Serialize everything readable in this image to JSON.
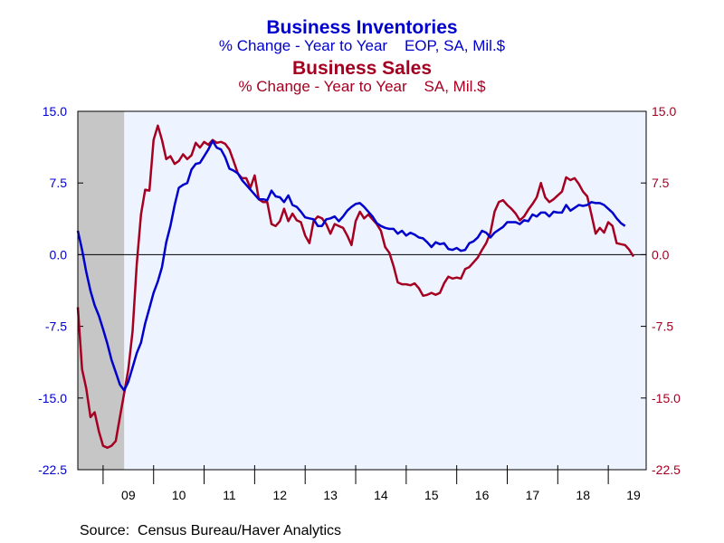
{
  "titles": {
    "inventories_title": "Business Inventories",
    "inventories_subtitle": "% Change - Year to Year    EOP, SA, Mil.$",
    "sales_title": "Business Sales",
    "sales_subtitle": "% Change - Year to Year    SA, Mil.$"
  },
  "colors": {
    "inventories": "#0000cc",
    "sales": "#a50021",
    "plot_bg": "#eef4ff",
    "recession": "#c6c6c6"
  },
  "source": "Source:  Census Bureau/Haver Analytics",
  "chart_data": {
    "type": "line",
    "x_range": [
      "2008-07",
      "2019-10"
    ],
    "xticks": [
      {
        "label": "09",
        "x": "2009-07"
      },
      {
        "label": "10",
        "x": "2010-07"
      },
      {
        "label": "11",
        "x": "2011-07"
      },
      {
        "label": "12",
        "x": "2012-07"
      },
      {
        "label": "13",
        "x": "2013-07"
      },
      {
        "label": "14",
        "x": "2014-07"
      },
      {
        "label": "15",
        "x": "2015-07"
      },
      {
        "label": "16",
        "x": "2016-07"
      },
      {
        "label": "17",
        "x": "2017-07"
      },
      {
        "label": "18",
        "x": "2018-07"
      },
      {
        "label": "19",
        "x": "2019-07"
      }
    ],
    "yticks": [
      "15.0",
      "7.5",
      "0.0",
      "-7.5",
      "-15.0",
      "-22.5"
    ],
    "y_left_ticks": [
      "15.0",
      "7.5",
      "0.0",
      "-7.5",
      "-15.0",
      "-22.5"
    ],
    "y_right_ticks": [
      "15.0",
      "7.5",
      "0.0",
      "-7.5",
      "-15.0",
      "-22.5"
    ],
    "ylim": [
      -22.5,
      15.0
    ],
    "zero_line": true,
    "shaded_period": [
      "2008-07",
      "2009-06"
    ],
    "series": [
      {
        "name": "Business Inventories",
        "axis": "left",
        "points": [
          [
            "2008-07",
            2.5
          ],
          [
            "2008-08",
            0.5
          ],
          [
            "2008-09",
            -1.8
          ],
          [
            "2008-10",
            -3.8
          ],
          [
            "2008-11",
            -5.3
          ],
          [
            "2008-12",
            -6.4
          ],
          [
            "2009-01",
            -7.8
          ],
          [
            "2009-02",
            -9.3
          ],
          [
            "2009-03",
            -11.0
          ],
          [
            "2009-04",
            -12.3
          ],
          [
            "2009-05",
            -13.6
          ],
          [
            "2009-06",
            -14.2
          ],
          [
            "2009-07",
            -13.3
          ],
          [
            "2009-08",
            -11.8
          ],
          [
            "2009-09",
            -10.3
          ],
          [
            "2009-10",
            -9.2
          ],
          [
            "2009-11",
            -7.2
          ],
          [
            "2009-12",
            -5.6
          ],
          [
            "2010-01",
            -4.0
          ],
          [
            "2010-02",
            -2.8
          ],
          [
            "2010-03",
            -1.3
          ],
          [
            "2010-04",
            1.3
          ],
          [
            "2010-05",
            3.0
          ],
          [
            "2010-06",
            5.2
          ],
          [
            "2010-07",
            7.0
          ],
          [
            "2010-08",
            7.3
          ],
          [
            "2010-09",
            7.5
          ],
          [
            "2010-10",
            8.9
          ],
          [
            "2010-11",
            9.5
          ],
          [
            "2010-12",
            9.6
          ],
          [
            "2011-01",
            10.3
          ],
          [
            "2011-02",
            11.0
          ],
          [
            "2011-03",
            11.9
          ],
          [
            "2011-04",
            11.2
          ],
          [
            "2011-05",
            11.0
          ],
          [
            "2011-06",
            10.2
          ],
          [
            "2011-07",
            9.0
          ],
          [
            "2011-08",
            8.8
          ],
          [
            "2011-09",
            8.5
          ],
          [
            "2011-10",
            7.8
          ],
          [
            "2011-11",
            7.3
          ],
          [
            "2011-12",
            6.8
          ],
          [
            "2012-01",
            6.3
          ],
          [
            "2012-02",
            5.8
          ],
          [
            "2012-03",
            5.8
          ],
          [
            "2012-04",
            5.7
          ],
          [
            "2012-05",
            6.7
          ],
          [
            "2012-06",
            6.1
          ],
          [
            "2012-07",
            6.0
          ],
          [
            "2012-08",
            5.5
          ],
          [
            "2012-09",
            6.2
          ],
          [
            "2012-10",
            5.2
          ],
          [
            "2012-11",
            5.0
          ],
          [
            "2012-12",
            4.5
          ],
          [
            "2013-01",
            3.9
          ],
          [
            "2013-02",
            3.8
          ],
          [
            "2013-03",
            3.7
          ],
          [
            "2013-04",
            3.0
          ],
          [
            "2013-05",
            3.0
          ],
          [
            "2013-06",
            3.7
          ],
          [
            "2013-07",
            3.8
          ],
          [
            "2013-08",
            4.0
          ],
          [
            "2013-09",
            3.5
          ],
          [
            "2013-10",
            4.0
          ],
          [
            "2013-11",
            4.6
          ],
          [
            "2013-12",
            5.0
          ],
          [
            "2014-01",
            5.3
          ],
          [
            "2014-02",
            5.4
          ],
          [
            "2014-03",
            5.0
          ],
          [
            "2014-04",
            4.5
          ],
          [
            "2014-05",
            4.0
          ],
          [
            "2014-06",
            3.3
          ],
          [
            "2014-07",
            3.0
          ],
          [
            "2014-08",
            2.8
          ],
          [
            "2014-09",
            2.7
          ],
          [
            "2014-10",
            2.7
          ],
          [
            "2014-11",
            2.2
          ],
          [
            "2014-12",
            2.5
          ],
          [
            "2015-01",
            2.0
          ],
          [
            "2015-02",
            2.3
          ],
          [
            "2015-03",
            2.1
          ],
          [
            "2015-04",
            1.8
          ],
          [
            "2015-05",
            1.7
          ],
          [
            "2015-06",
            1.3
          ],
          [
            "2015-07",
            0.8
          ],
          [
            "2015-08",
            1.3
          ],
          [
            "2015-09",
            1.1
          ],
          [
            "2015-10",
            1.2
          ],
          [
            "2015-11",
            0.6
          ],
          [
            "2015-12",
            0.5
          ],
          [
            "2016-01",
            0.7
          ],
          [
            "2016-02",
            0.4
          ],
          [
            "2016-03",
            0.5
          ],
          [
            "2016-04",
            1.2
          ],
          [
            "2016-05",
            1.4
          ],
          [
            "2016-06",
            1.8
          ],
          [
            "2016-07",
            2.5
          ],
          [
            "2016-08",
            2.3
          ],
          [
            "2016-09",
            1.8
          ],
          [
            "2016-10",
            2.3
          ],
          [
            "2016-11",
            2.6
          ],
          [
            "2016-12",
            2.9
          ],
          [
            "2017-01",
            3.4
          ],
          [
            "2017-02",
            3.4
          ],
          [
            "2017-03",
            3.4
          ],
          [
            "2017-04",
            3.2
          ],
          [
            "2017-05",
            3.6
          ],
          [
            "2017-06",
            3.5
          ],
          [
            "2017-07",
            4.2
          ],
          [
            "2017-08",
            4.0
          ],
          [
            "2017-09",
            4.4
          ],
          [
            "2017-10",
            4.4
          ],
          [
            "2017-11",
            4.0
          ],
          [
            "2017-12",
            4.5
          ],
          [
            "2018-01",
            4.4
          ],
          [
            "2018-02",
            4.4
          ],
          [
            "2018-03",
            5.2
          ],
          [
            "2018-04",
            4.6
          ],
          [
            "2018-05",
            4.9
          ],
          [
            "2018-06",
            5.2
          ],
          [
            "2018-07",
            5.1
          ],
          [
            "2018-08",
            5.2
          ],
          [
            "2018-09",
            5.5
          ],
          [
            "2018-10",
            5.4
          ],
          [
            "2018-11",
            5.4
          ],
          [
            "2018-12",
            5.2
          ],
          [
            "2019-01",
            4.8
          ],
          [
            "2019-02",
            4.4
          ],
          [
            "2019-03",
            3.8
          ],
          [
            "2019-04",
            3.3
          ],
          [
            "2019-05",
            3.0
          ]
        ]
      },
      {
        "name": "Business Sales",
        "axis": "right",
        "points": [
          [
            "2008-07",
            -5.5
          ],
          [
            "2008-08",
            -12.0
          ],
          [
            "2008-09",
            -14.0
          ],
          [
            "2008-10",
            -17.0
          ],
          [
            "2008-11",
            -16.5
          ],
          [
            "2008-12",
            -18.5
          ],
          [
            "2009-01",
            -20.0
          ],
          [
            "2009-02",
            -20.2
          ],
          [
            "2009-03",
            -20.0
          ],
          [
            "2009-04",
            -19.5
          ],
          [
            "2009-05",
            -17.0
          ],
          [
            "2009-06",
            -14.5
          ],
          [
            "2009-07",
            -12.0
          ],
          [
            "2009-08",
            -8.0
          ],
          [
            "2009-09",
            -1.0
          ],
          [
            "2009-10",
            4.2
          ],
          [
            "2009-11",
            6.8
          ],
          [
            "2009-12",
            6.7
          ],
          [
            "2010-01",
            12.0
          ],
          [
            "2010-02",
            13.5
          ],
          [
            "2010-03",
            12.0
          ],
          [
            "2010-04",
            10.0
          ],
          [
            "2010-05",
            10.3
          ],
          [
            "2010-06",
            9.5
          ],
          [
            "2010-07",
            9.8
          ],
          [
            "2010-08",
            10.5
          ],
          [
            "2010-09",
            10.0
          ],
          [
            "2010-10",
            10.4
          ],
          [
            "2010-11",
            11.7
          ],
          [
            "2010-12",
            11.2
          ],
          [
            "2011-01",
            11.8
          ],
          [
            "2011-02",
            11.5
          ],
          [
            "2011-03",
            12.0
          ],
          [
            "2011-04",
            11.7
          ],
          [
            "2011-05",
            11.8
          ],
          [
            "2011-06",
            11.6
          ],
          [
            "2011-07",
            11.0
          ],
          [
            "2011-08",
            9.8
          ],
          [
            "2011-09",
            8.5
          ],
          [
            "2011-10",
            8.0
          ],
          [
            "2011-11",
            8.0
          ],
          [
            "2011-12",
            7.0
          ],
          [
            "2012-01",
            8.3
          ],
          [
            "2012-02",
            5.8
          ],
          [
            "2012-03",
            5.5
          ],
          [
            "2012-04",
            5.5
          ],
          [
            "2012-05",
            3.2
          ],
          [
            "2012-06",
            3.0
          ],
          [
            "2012-07",
            3.5
          ],
          [
            "2012-08",
            4.8
          ],
          [
            "2012-09",
            3.5
          ],
          [
            "2012-10",
            4.3
          ],
          [
            "2012-11",
            3.6
          ],
          [
            "2012-12",
            3.4
          ],
          [
            "2013-01",
            2.0
          ],
          [
            "2013-02",
            1.2
          ],
          [
            "2013-03",
            3.5
          ],
          [
            "2013-04",
            4.0
          ],
          [
            "2013-05",
            3.8
          ],
          [
            "2013-06",
            3.2
          ],
          [
            "2013-07",
            2.2
          ],
          [
            "2013-08",
            3.2
          ],
          [
            "2013-09",
            3.0
          ],
          [
            "2013-10",
            2.8
          ],
          [
            "2013-11",
            2.0
          ],
          [
            "2013-12",
            1.0
          ],
          [
            "2014-01",
            3.5
          ],
          [
            "2014-02",
            4.5
          ],
          [
            "2014-03",
            3.8
          ],
          [
            "2014-04",
            4.2
          ],
          [
            "2014-05",
            3.7
          ],
          [
            "2014-06",
            3.2
          ],
          [
            "2014-07",
            2.5
          ],
          [
            "2014-08",
            0.8
          ],
          [
            "2014-09",
            0.2
          ],
          [
            "2014-10",
            -1.2
          ],
          [
            "2014-11",
            -2.9
          ],
          [
            "2014-12",
            -3.1
          ],
          [
            "2015-01",
            -3.1
          ],
          [
            "2015-02",
            -3.2
          ],
          [
            "2015-03",
            -3.0
          ],
          [
            "2015-04",
            -3.5
          ],
          [
            "2015-05",
            -4.3
          ],
          [
            "2015-06",
            -4.2
          ],
          [
            "2015-07",
            -4.0
          ],
          [
            "2015-08",
            -4.2
          ],
          [
            "2015-09",
            -4.0
          ],
          [
            "2015-10",
            -3.0
          ],
          [
            "2015-11",
            -2.3
          ],
          [
            "2015-12",
            -2.5
          ],
          [
            "2016-01",
            -2.4
          ],
          [
            "2016-02",
            -2.5
          ],
          [
            "2016-03",
            -1.5
          ],
          [
            "2016-04",
            -1.3
          ],
          [
            "2016-05",
            -0.8
          ],
          [
            "2016-06",
            -0.3
          ],
          [
            "2016-07",
            0.5
          ],
          [
            "2016-08",
            1.2
          ],
          [
            "2016-09",
            2.3
          ],
          [
            "2016-10",
            4.5
          ],
          [
            "2016-11",
            5.5
          ],
          [
            "2016-12",
            5.7
          ],
          [
            "2017-01",
            5.2
          ],
          [
            "2017-02",
            4.8
          ],
          [
            "2017-03",
            4.3
          ],
          [
            "2017-04",
            3.6
          ],
          [
            "2017-05",
            4.0
          ],
          [
            "2017-06",
            4.7
          ],
          [
            "2017-07",
            5.3
          ],
          [
            "2017-08",
            6.0
          ],
          [
            "2017-09",
            7.5
          ],
          [
            "2017-10",
            6.0
          ],
          [
            "2017-11",
            5.5
          ],
          [
            "2017-12",
            5.8
          ],
          [
            "2018-01",
            6.2
          ],
          [
            "2018-02",
            6.6
          ],
          [
            "2018-03",
            8.1
          ],
          [
            "2018-04",
            7.8
          ],
          [
            "2018-05",
            8.0
          ],
          [
            "2018-06",
            7.4
          ],
          [
            "2018-07",
            6.6
          ],
          [
            "2018-08",
            6.1
          ],
          [
            "2018-09",
            4.2
          ],
          [
            "2018-10",
            2.2
          ],
          [
            "2018-11",
            2.8
          ],
          [
            "2018-12",
            2.3
          ],
          [
            "2019-01",
            3.4
          ],
          [
            "2019-02",
            3.0
          ],
          [
            "2019-03",
            1.2
          ],
          [
            "2019-04",
            1.1
          ],
          [
            "2019-05",
            1.0
          ],
          [
            "2019-06",
            0.5
          ],
          [
            "2019-07",
            -0.2
          ]
        ]
      }
    ]
  }
}
